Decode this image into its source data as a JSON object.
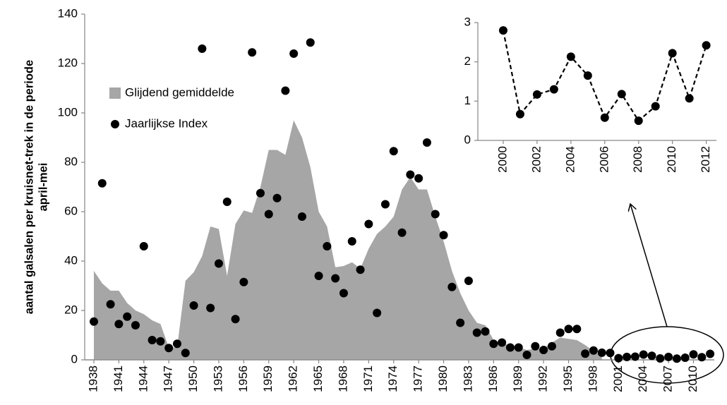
{
  "chart_data": [
    {
      "type": "combo",
      "ylabel": [
        "aantal galsalen per kruisnet-trek in de periode",
        "april-mei"
      ],
      "x": [
        1938,
        1939,
        1940,
        1941,
        1942,
        1943,
        1944,
        1945,
        1946,
        1947,
        1948,
        1949,
        1950,
        1951,
        1952,
        1953,
        1954,
        1955,
        1956,
        1957,
        1958,
        1959,
        1960,
        1961,
        1962,
        1963,
        1964,
        1965,
        1966,
        1967,
        1968,
        1969,
        1970,
        1971,
        1972,
        1973,
        1974,
        1975,
        1976,
        1977,
        1978,
        1979,
        1980,
        1981,
        1982,
        1983,
        1984,
        1985,
        1986,
        1987,
        1988,
        1989,
        1990,
        1991,
        1992,
        1993,
        1994,
        1995,
        1996,
        1997,
        1998,
        1999,
        2000,
        2001,
        2002,
        2003,
        2004,
        2005,
        2006,
        2007,
        2008,
        2009,
        2010,
        2011,
        2012
      ],
      "series": [
        {
          "name": "Glijdend gemiddelde",
          "type": "area",
          "color": "#a6a6a6",
          "values": [
            36,
            31,
            28,
            28,
            23,
            20,
            18.5,
            16,
            14.5,
            5,
            5,
            32,
            35.5,
            42,
            54,
            53,
            34,
            55,
            60.5,
            59.5,
            70,
            85,
            85,
            83,
            97,
            90,
            78,
            60,
            54,
            37.5,
            38,
            39.5,
            37,
            45,
            51,
            54,
            58,
            69,
            74,
            69,
            69,
            58,
            48,
            36,
            27,
            20,
            15,
            14,
            8,
            6.5,
            6,
            5,
            4,
            4.5,
            4.5,
            7,
            9,
            8.5,
            8,
            6,
            3.5,
            1.5,
            null,
            null,
            null,
            null,
            null,
            null,
            null,
            null,
            null,
            null,
            null,
            null,
            null
          ]
        },
        {
          "name": "Jaarlijkse Index",
          "type": "scatter",
          "color": "#000000",
          "values": [
            15.5,
            71.5,
            22.5,
            14.5,
            17.5,
            14,
            46,
            8,
            7.5,
            4.8,
            6.5,
            2.8,
            22,
            126,
            21,
            39,
            64,
            16.5,
            31.5,
            124.5,
            67.5,
            59,
            65.5,
            109,
            124,
            58,
            128.5,
            34,
            46,
            33,
            27,
            48,
            36.5,
            55,
            19,
            63,
            84.5,
            51.5,
            75,
            73.5,
            88,
            59,
            50.5,
            29.5,
            15,
            32,
            11,
            11.5,
            6.5,
            7,
            5,
            5,
            2,
            5.5,
            4,
            5.5,
            11,
            12.5,
            12.5,
            2.5,
            3.8,
            2.9,
            2.8,
            0.67,
            1.17,
            1.3,
            2.13,
            1.65,
            0.58,
            1.18,
            0.5,
            0.87,
            2.22,
            1.07,
            2.42
          ]
        }
      ],
      "xlim": [
        1936.9,
        2012.5
      ],
      "xticks": [
        1938,
        1941,
        1944,
        1947,
        1950,
        1953,
        1956,
        1959,
        1962,
        1965,
        1968,
        1971,
        1974,
        1977,
        1980,
        1983,
        1986,
        1989,
        1992,
        1995,
        1998,
        2001,
        2004,
        2007,
        2010
      ],
      "ylim": [
        0,
        140
      ],
      "yticks": [
        0,
        20,
        40,
        60,
        80,
        100,
        120,
        140
      ],
      "legend": "upper left"
    },
    {
      "type": "line",
      "x": [
        2000,
        2001,
        2002,
        2003,
        2004,
        2005,
        2006,
        2007,
        2008,
        2009,
        2010,
        2011,
        2012
      ],
      "values": [
        2.8,
        0.67,
        1.17,
        1.3,
        2.13,
        1.65,
        0.58,
        1.18,
        0.5,
        0.87,
        2.22,
        1.07,
        2.42
      ],
      "color": "#000000",
      "linestyle": "dashed",
      "xlim": [
        1998.5,
        2012.6
      ],
      "xticks": [
        2000,
        2002,
        2004,
        2006,
        2008,
        2010,
        2012
      ],
      "ylim": [
        0,
        3
      ],
      "yticks": [
        0,
        1,
        2,
        3
      ]
    }
  ]
}
